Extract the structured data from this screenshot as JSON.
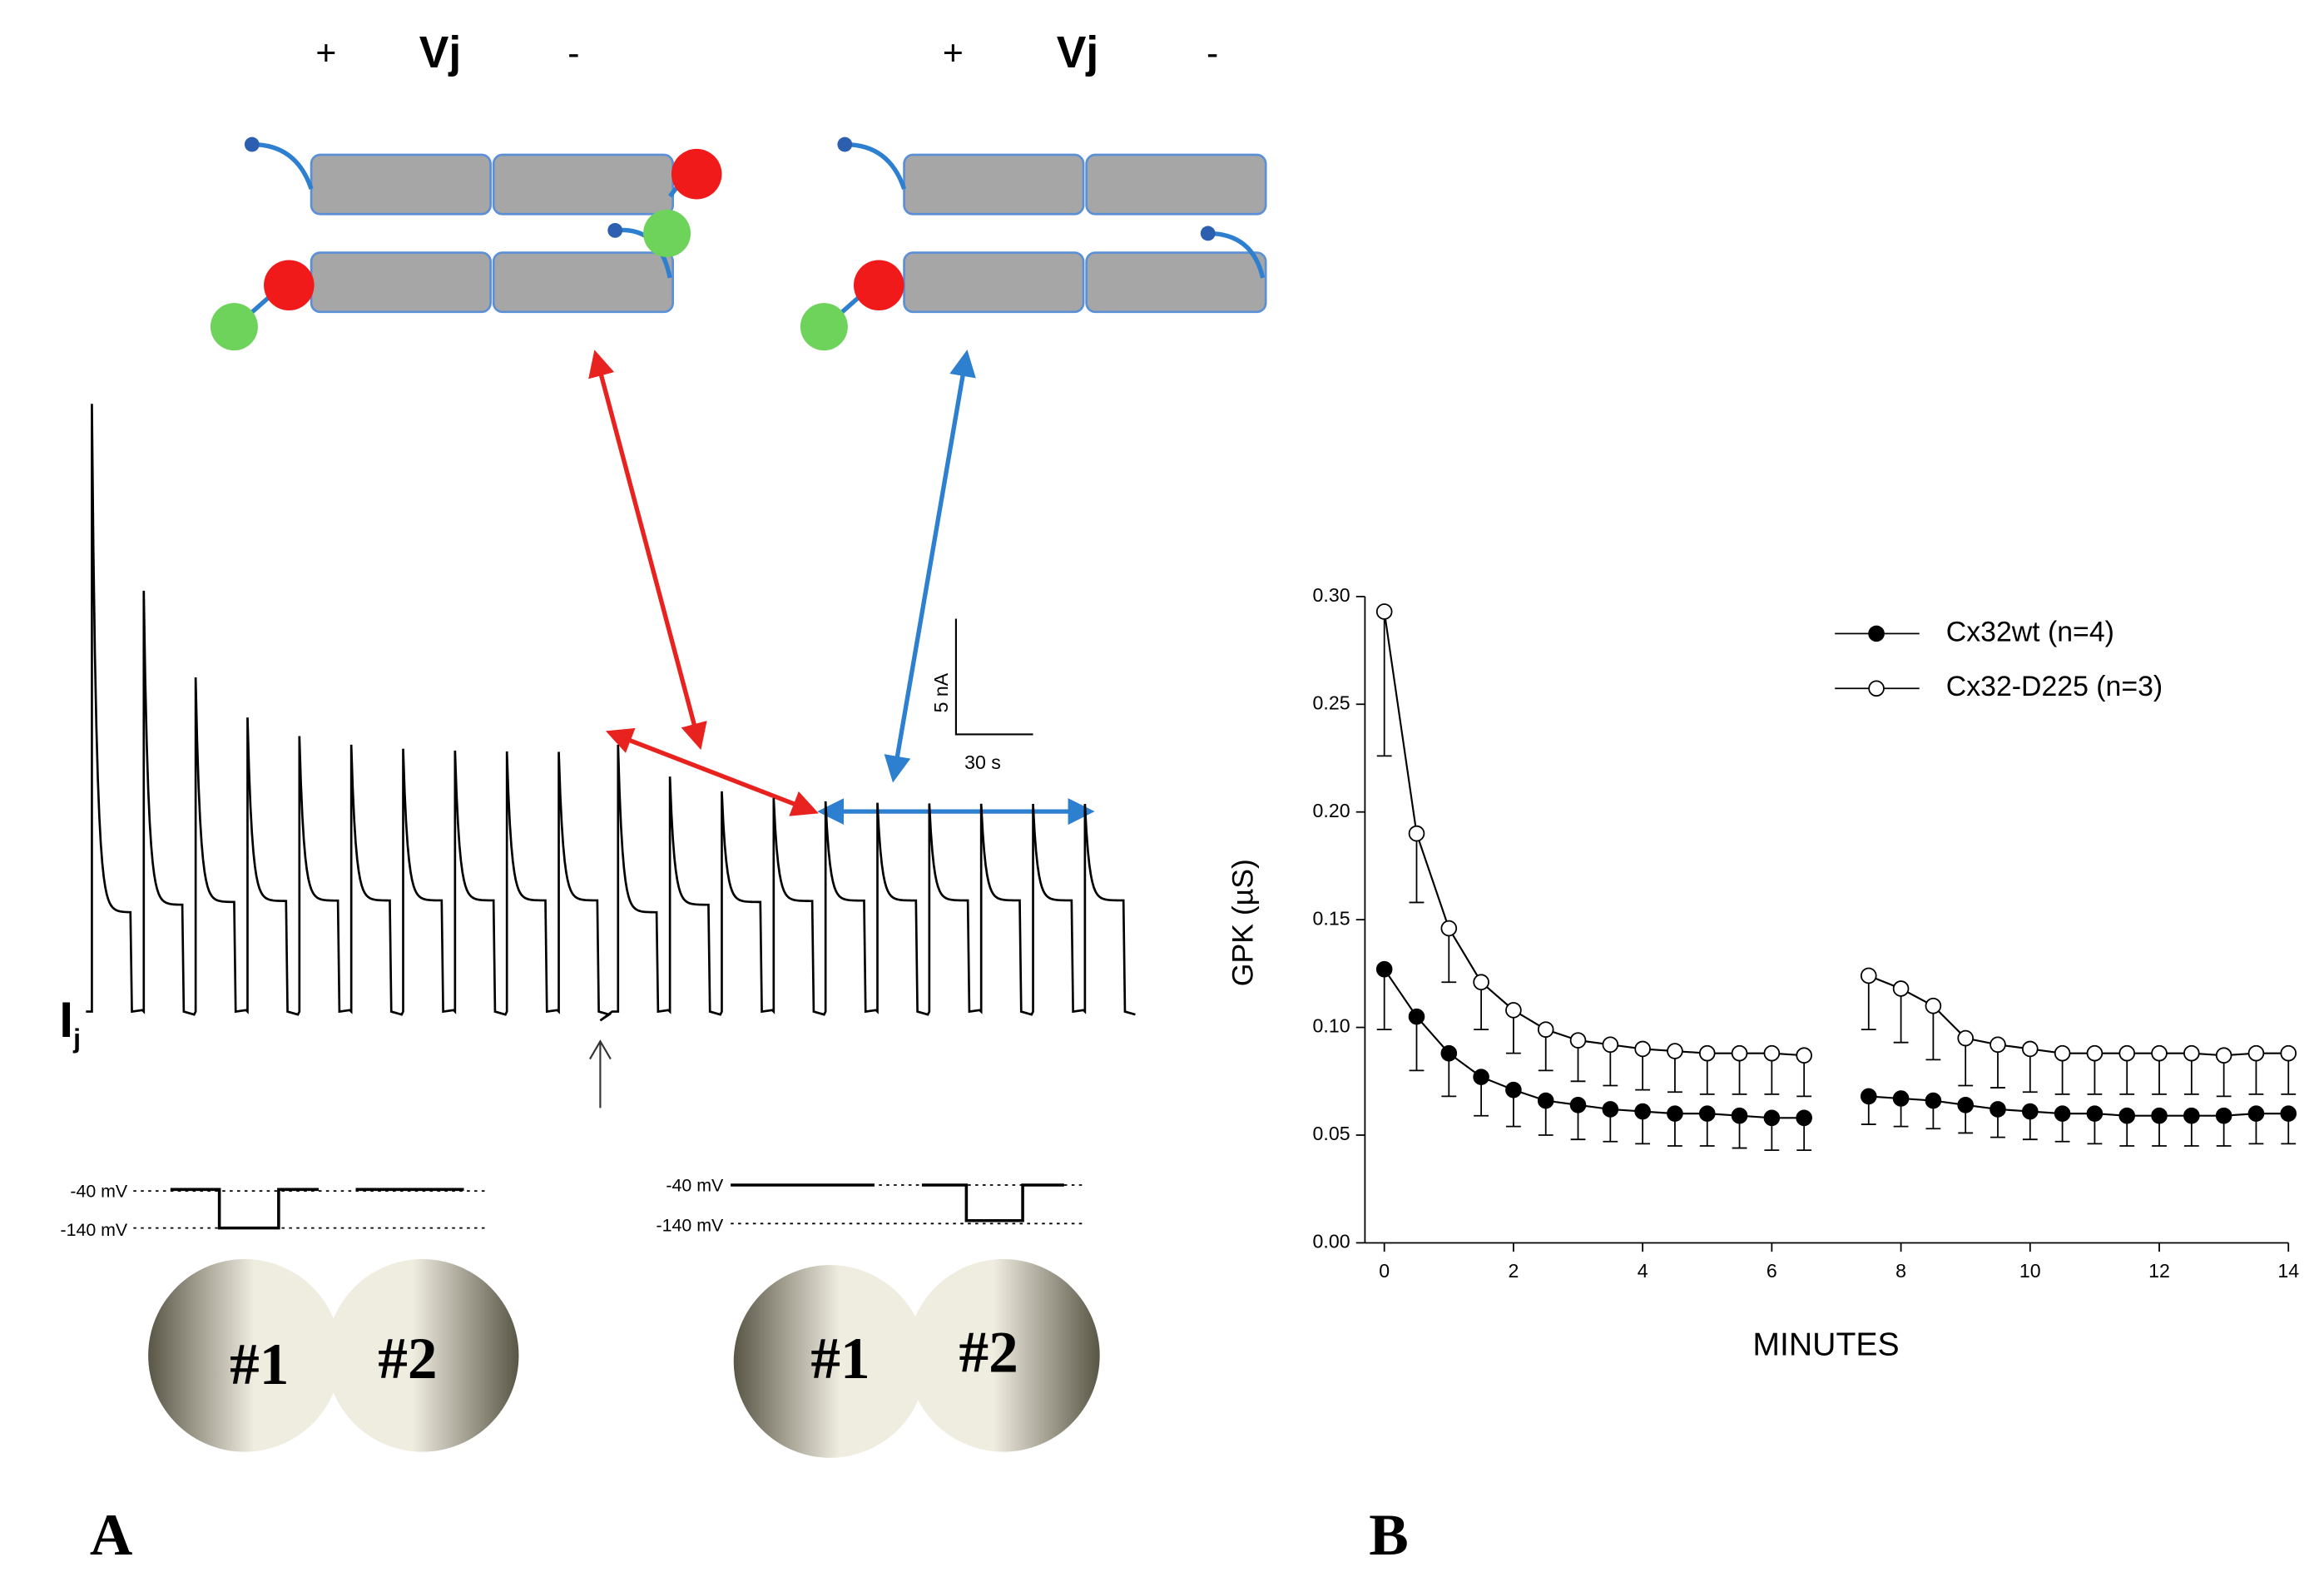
{
  "panel_a": {
    "label": "A",
    "vj_left": {
      "plus": "+",
      "name": "Vj",
      "minus": "-"
    },
    "vj_right": {
      "plus": "+",
      "name": "Vj",
      "minus": "-"
    },
    "current_label": {
      "main": "I",
      "sub": "j"
    },
    "scale_bar": {
      "current": "5 nA",
      "time": "30 s"
    },
    "protocol_left": {
      "hold": "-40 mV",
      "step": "-140 mV"
    },
    "protocol_right": {
      "hold": "-40 mV",
      "step": "-140 mV"
    },
    "cells_left": [
      "#1",
      "#2"
    ],
    "cells_right": [
      "#1",
      "#2"
    ]
  },
  "chart_data": {
    "type": "line",
    "panel_label": "B",
    "xlabel": "MINUTES",
    "ylabel": "GPK (µS)",
    "x": [
      0,
      0.5,
      1,
      1.5,
      2,
      2.5,
      3,
      3.5,
      4,
      4.5,
      5,
      5.5,
      6,
      6.5,
      7,
      7.5,
      8,
      8.5,
      9,
      9.5,
      10,
      10.5,
      11,
      11.5,
      12,
      12.5,
      13,
      13.5,
      14
    ],
    "series": [
      {
        "name": "Cx32wt (n=4)",
        "color": "#000000",
        "marker": "filled",
        "values": [
          0.127,
          0.105,
          0.088,
          0.077,
          0.071,
          0.066,
          0.064,
          0.062,
          0.061,
          0.06,
          0.06,
          0.059,
          0.058,
          0.058,
          null,
          0.068,
          0.067,
          0.066,
          0.064,
          0.062,
          0.061,
          0.06,
          0.06,
          0.059,
          0.059,
          0.059,
          0.059,
          0.06,
          0.06
        ],
        "errors": [
          0.028,
          0.025,
          0.02,
          0.018,
          0.017,
          0.016,
          0.016,
          0.015,
          0.015,
          0.015,
          0.015,
          0.015,
          0.015,
          0.015,
          null,
          0.013,
          0.013,
          0.013,
          0.013,
          0.013,
          0.013,
          0.013,
          0.014,
          0.014,
          0.014,
          0.014,
          0.014,
          0.014,
          0.014
        ]
      },
      {
        "name": "Cx32-D225 (n=3)",
        "color": "#000000",
        "marker": "open",
        "values": [
          0.293,
          0.19,
          0.146,
          0.121,
          0.108,
          0.099,
          0.094,
          0.092,
          0.09,
          0.089,
          0.088,
          0.088,
          0.088,
          0.087,
          null,
          0.124,
          0.118,
          0.11,
          0.095,
          0.092,
          0.09,
          0.088,
          0.088,
          0.088,
          0.088,
          0.088,
          0.087,
          0.088,
          0.088
        ],
        "errors": [
          0.067,
          0.032,
          0.025,
          0.022,
          0.02,
          0.019,
          0.019,
          0.019,
          0.019,
          0.019,
          0.019,
          0.019,
          0.019,
          0.019,
          null,
          0.025,
          0.025,
          0.025,
          0.022,
          0.02,
          0.02,
          0.019,
          0.019,
          0.019,
          0.019,
          0.019,
          0.019,
          0.019,
          0.019
        ]
      }
    ],
    "xlim": [
      -0.3,
      14
    ],
    "ylim": [
      0,
      0.3
    ],
    "xticks": [
      0,
      2,
      4,
      6,
      8,
      10,
      12,
      14
    ],
    "yticks": [
      {
        "value": 0,
        "label": "0.00"
      },
      {
        "value": 0.05,
        "label": "0.05"
      },
      {
        "value": 0.1,
        "label": "0.10"
      },
      {
        "value": 0.15,
        "label": "0.15"
      },
      {
        "value": 0.2,
        "label": "0.20"
      },
      {
        "value": 0.25,
        "label": "0.25"
      },
      {
        "value": 0.3,
        "label": "0.30"
      }
    ],
    "legend": "upper right"
  }
}
